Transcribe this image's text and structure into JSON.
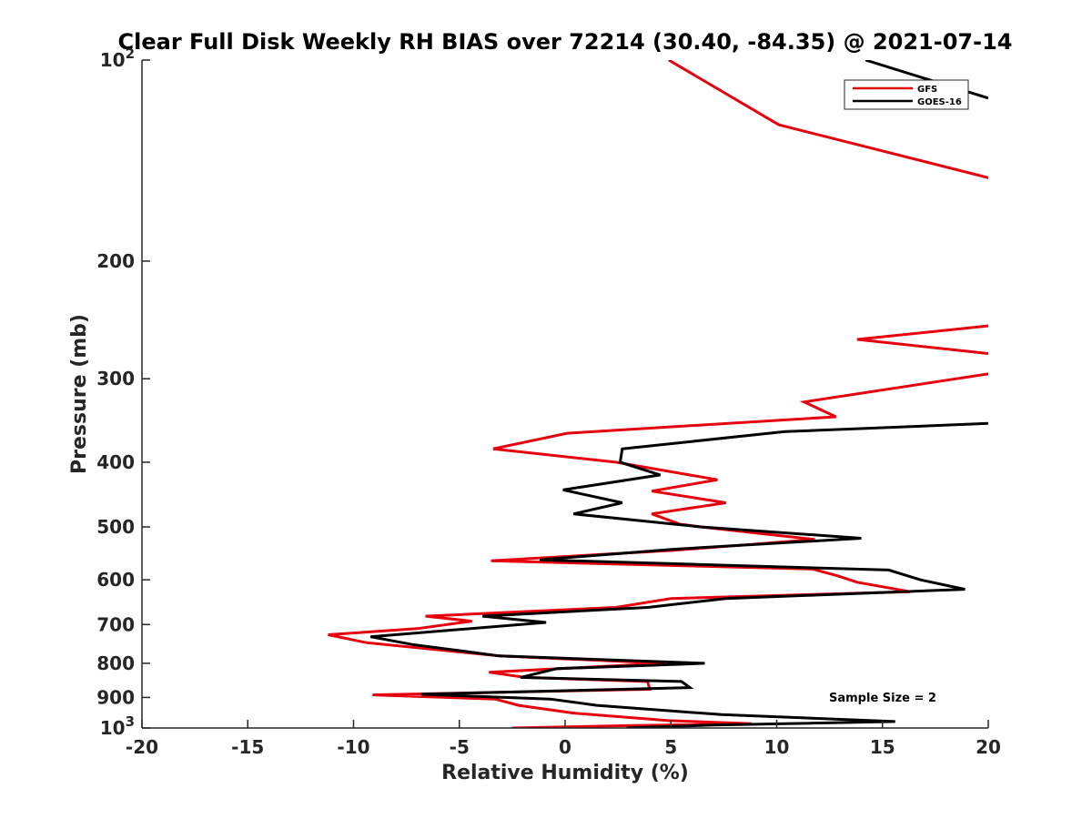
{
  "chart_data": {
    "type": "line",
    "title": "Clear Full Disk Weekly RH BIAS over 72214 (30.40, -84.35) @ 2021-07-14",
    "xlabel": "Relative Humidity (%)",
    "ylabel": "Pressure (mb)",
    "xlim": [
      -20,
      20
    ],
    "ylim": [
      100,
      1000
    ],
    "yscale": "log",
    "y_reversed": true,
    "x_ticks": [
      "-20",
      "-15",
      "-10",
      "-5",
      "0",
      "5",
      "10",
      "15",
      "20"
    ],
    "y_ticks": [
      {
        "value": 100,
        "base": "10",
        "exp": "2"
      },
      {
        "value": 200,
        "base": "200",
        "exp": ""
      },
      {
        "value": 300,
        "base": "300",
        "exp": ""
      },
      {
        "value": 400,
        "base": "400",
        "exp": ""
      },
      {
        "value": 500,
        "base": "500",
        "exp": ""
      },
      {
        "value": 600,
        "base": "600",
        "exp": ""
      },
      {
        "value": 700,
        "base": "700",
        "exp": ""
      },
      {
        "value": 800,
        "base": "800",
        "exp": ""
      },
      {
        "value": 900,
        "base": "900",
        "exp": ""
      },
      {
        "value": 1000,
        "base": "10",
        "exp": "3"
      }
    ],
    "legend_position": "top-right",
    "annotation": "Sample Size = 2",
    "series": [
      {
        "name": "GFS",
        "color": "#e6000d",
        "points": [
          [
            4.9,
            100
          ],
          [
            10.1,
            125
          ],
          [
            20.0,
            150
          ],
          [
            null,
            null
          ],
          [
            20.0,
            250
          ],
          [
            13.8,
            262
          ],
          [
            20.0,
            275
          ],
          [
            null,
            null
          ],
          [
            20.0,
            295
          ],
          [
            11.3,
            325
          ],
          [
            12.8,
            342
          ],
          [
            0.1,
            362
          ],
          [
            -3.4,
            382
          ],
          [
            2.4,
            400
          ],
          [
            7.2,
            425
          ],
          [
            4.1,
            442
          ],
          [
            7.6,
            460
          ],
          [
            4.1,
            478
          ],
          [
            5.4,
            495
          ],
          [
            6.4,
            500
          ],
          [
            11.8,
            522
          ],
          [
            5.1,
            542
          ],
          [
            -3.5,
            562
          ],
          [
            11.7,
            578
          ],
          [
            12.9,
            592
          ],
          [
            13.8,
            605
          ],
          [
            16.3,
            625
          ],
          [
            5.0,
            640
          ],
          [
            2.4,
            660
          ],
          [
            -6.6,
            680
          ],
          [
            -4.4,
            692
          ],
          [
            -7.0,
            710
          ],
          [
            -11.2,
            725
          ],
          [
            -9.4,
            745
          ],
          [
            -3.1,
            780
          ],
          [
            4.7,
            800
          ],
          [
            -3.6,
            825
          ],
          [
            -1.9,
            840
          ],
          [
            3.9,
            852
          ],
          [
            4.0,
            875
          ],
          [
            -9.1,
            892
          ],
          [
            -3.3,
            905
          ],
          [
            -2.2,
            925
          ],
          [
            0.4,
            950
          ],
          [
            4.9,
            975
          ],
          [
            8.8,
            985
          ],
          [
            3.0,
            992
          ],
          [
            -2.5,
            1000
          ]
        ]
      },
      {
        "name": "GOES-16",
        "color": "#000000",
        "points": [
          [
            14.2,
            100
          ],
          [
            20.0,
            114
          ],
          [
            null,
            null
          ],
          [
            20.0,
            350
          ],
          [
            10.4,
            360
          ],
          [
            2.7,
            382
          ],
          [
            2.6,
            400
          ],
          [
            4.5,
            418
          ],
          [
            -0.1,
            440
          ],
          [
            2.7,
            460
          ],
          [
            0.4,
            478
          ],
          [
            6.4,
            500
          ],
          [
            14.0,
            520
          ],
          [
            5.1,
            540
          ],
          [
            -1.2,
            560
          ],
          [
            15.3,
            580
          ],
          [
            16.8,
            600
          ],
          [
            18.9,
            620
          ],
          [
            7.6,
            640
          ],
          [
            3.9,
            660
          ],
          [
            -3.9,
            680
          ],
          [
            -0.9,
            695
          ],
          [
            -9.2,
            730
          ],
          [
            -7.2,
            750
          ],
          [
            -3.1,
            780
          ],
          [
            6.6,
            800
          ],
          [
            -0.4,
            815
          ],
          [
            -2.1,
            840
          ],
          [
            5.5,
            852
          ],
          [
            5.9,
            870
          ],
          [
            -6.8,
            890
          ],
          [
            -0.7,
            905
          ],
          [
            1.5,
            925
          ],
          [
            7.4,
            955
          ],
          [
            15.6,
            978
          ],
          [
            7.0,
            990
          ],
          [
            2.9,
            1000
          ]
        ]
      }
    ]
  }
}
